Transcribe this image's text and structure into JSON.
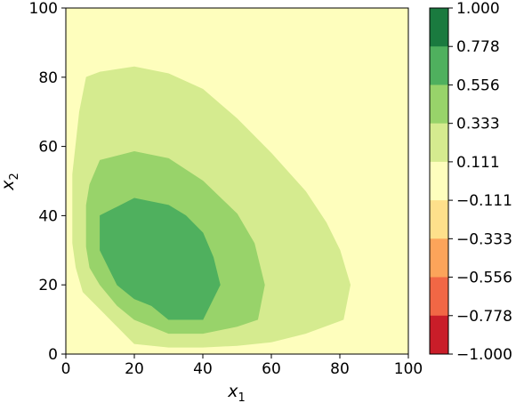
{
  "chart_data": {
    "type": "contour",
    "title": "",
    "xlabel": "x",
    "xlabel_sub": "1",
    "ylabel": "x",
    "ylabel_sub": "2",
    "xlim": [
      0,
      100
    ],
    "ylim": [
      0,
      100
    ],
    "x_ticks": [
      0,
      20,
      40,
      60,
      80,
      100
    ],
    "y_ticks": [
      0,
      20,
      40,
      60,
      80,
      100
    ],
    "x_tick_labels": [
      "0",
      "20",
      "40",
      "60",
      "80",
      "100"
    ],
    "y_tick_labels": [
      "0",
      "20",
      "40",
      "60",
      "80",
      "100"
    ],
    "grid": false,
    "levels": [
      -1.0,
      -0.778,
      -0.556,
      -0.333,
      -0.111,
      0.111,
      0.333,
      0.556,
      0.778,
      1.0
    ],
    "colorbar_tick_labels": [
      "1.000",
      "0.778",
      "0.556",
      "0.333",
      "0.111",
      "−0.111",
      "−0.333",
      "−0.556",
      "−0.778",
      "−1.000"
    ],
    "colorbar_colors": [
      "#1a7a3f",
      "#4fb05e",
      "#98d36a",
      "#d5eb8f",
      "#fefebd",
      "#fee08b",
      "#fca45a",
      "#f16745",
      "#c91d29"
    ],
    "background_color": "#fefebd",
    "contour_regions": [
      {
        "band": "0.111 to 0.333",
        "color": "#d5eb8f",
        "outline": [
          [
            2,
            40
          ],
          [
            2,
            52
          ],
          [
            4,
            70
          ],
          [
            6,
            80
          ],
          [
            10,
            81.5
          ],
          [
            20,
            83
          ],
          [
            30,
            81
          ],
          [
            40,
            76.5
          ],
          [
            50,
            68
          ],
          [
            60,
            58
          ],
          [
            70,
            47
          ],
          [
            76,
            38
          ],
          [
            80,
            30
          ],
          [
            83,
            20
          ],
          [
            81,
            10
          ],
          [
            70,
            6
          ],
          [
            60,
            3.5
          ],
          [
            50,
            2.5
          ],
          [
            40,
            2
          ],
          [
            30,
            2
          ],
          [
            20,
            3
          ],
          [
            15,
            8
          ],
          [
            10,
            13
          ],
          [
            5,
            18
          ],
          [
            3,
            25
          ],
          [
            2,
            32
          ]
        ]
      },
      {
        "band": "0.333 to 0.556",
        "color": "#98d36a",
        "outline": [
          [
            6,
            31
          ],
          [
            6,
            43
          ],
          [
            7,
            49
          ],
          [
            10,
            56
          ],
          [
            20,
            58.5
          ],
          [
            30,
            56.5
          ],
          [
            40,
            50
          ],
          [
            50,
            40.5
          ],
          [
            55,
            32
          ],
          [
            58,
            20
          ],
          [
            56,
            10
          ],
          [
            50,
            8
          ],
          [
            40,
            6
          ],
          [
            30,
            6
          ],
          [
            25,
            8
          ],
          [
            20,
            10
          ],
          [
            15,
            14
          ],
          [
            10,
            20
          ],
          [
            7,
            25
          ]
        ]
      },
      {
        "band": "0.556 to 0.778",
        "color": "#4fb05e",
        "outline": [
          [
            10,
            30
          ],
          [
            10,
            40
          ],
          [
            15,
            42.5
          ],
          [
            20,
            45
          ],
          [
            30,
            43
          ],
          [
            35,
            40
          ],
          [
            40,
            35
          ],
          [
            43,
            28
          ],
          [
            45,
            20
          ],
          [
            40,
            10
          ],
          [
            30,
            10
          ],
          [
            25,
            14
          ],
          [
            20,
            16
          ],
          [
            15,
            20
          ]
        ]
      }
    ]
  }
}
